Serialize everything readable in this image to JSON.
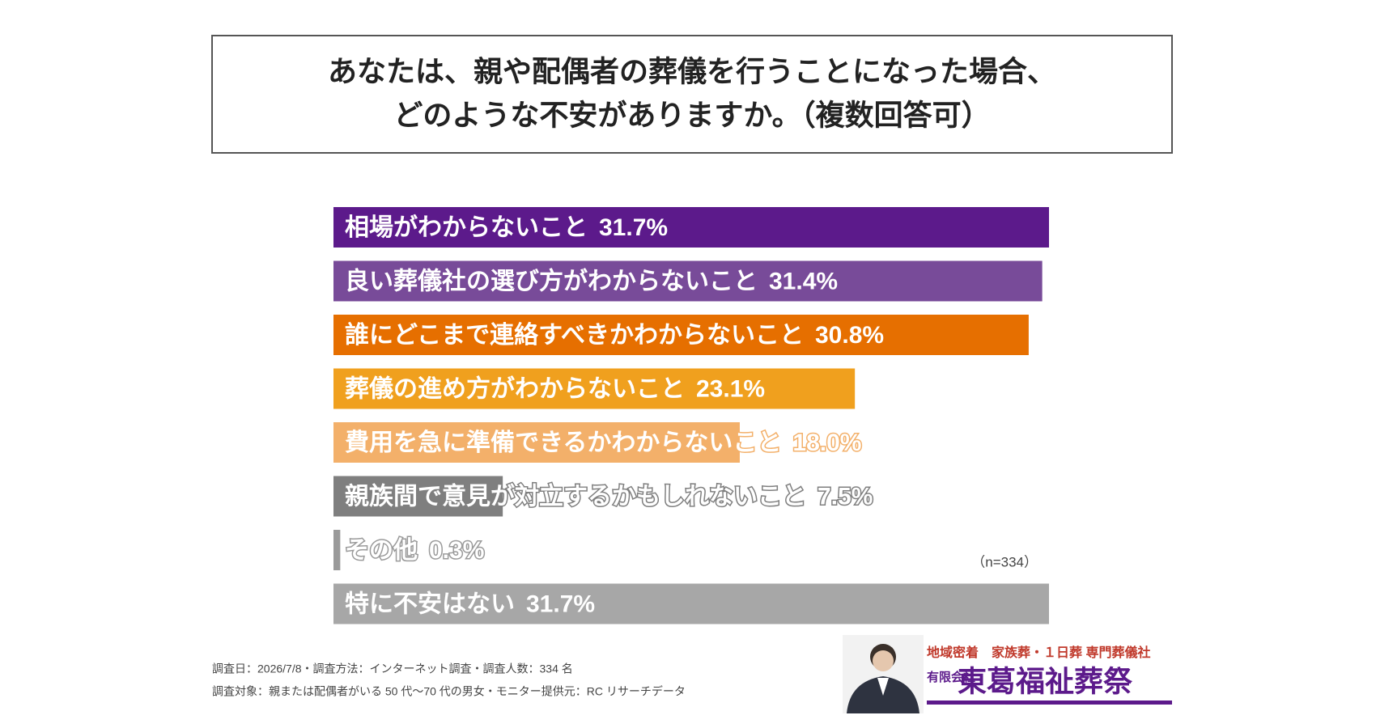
{
  "chart_data": {
    "type": "hbar",
    "title": [
      "あなたは、親や配偶者の葬儀を行うことになった場合、",
      "どのような不安がありますか。（複数回答可）"
    ],
    "categories": [
      "相場がわからないこと",
      "良い葬儀社の選び方がわからないこと",
      "誰にどこまで連絡すべきかわからないこと",
      "葬儀の進め方がわからないこと",
      "費用を急に準備できるかわからないこと",
      "親族間で意見が対立するかもしれないこと",
      "その他",
      "特に不安はない"
    ],
    "values": [
      31.7,
      31.4,
      30.8,
      23.1,
      18.0,
      7.5,
      0.3,
      31.7
    ],
    "value_labels": [
      "31.7%",
      "31.4%",
      "30.8%",
      "23.1%",
      "18.0%",
      "7.5%",
      "0.3%",
      "31.7%"
    ],
    "colors": [
      "#5c1a8b",
      "#784b99",
      "#e66f00",
      "#f0a01e",
      "#f3b06a",
      "#7f7f7f",
      "#9a9a9a",
      "#a7a7a7"
    ],
    "note": "（n=334）",
    "footnotes": [
      "調査日：2026/7/8・調査方法：インターネット調査・調査人数：334 名",
      "調査対象：親または配偶者がいる 50 代～70 代の男女・モニター提供元：RC リサーチデータ"
    ]
  },
  "logo": {
    "tagline": "地域密着　家族葬・１日葬 専門葬儀社",
    "prefix": "有限会社",
    "name": "東葛福祉葬祭"
  }
}
